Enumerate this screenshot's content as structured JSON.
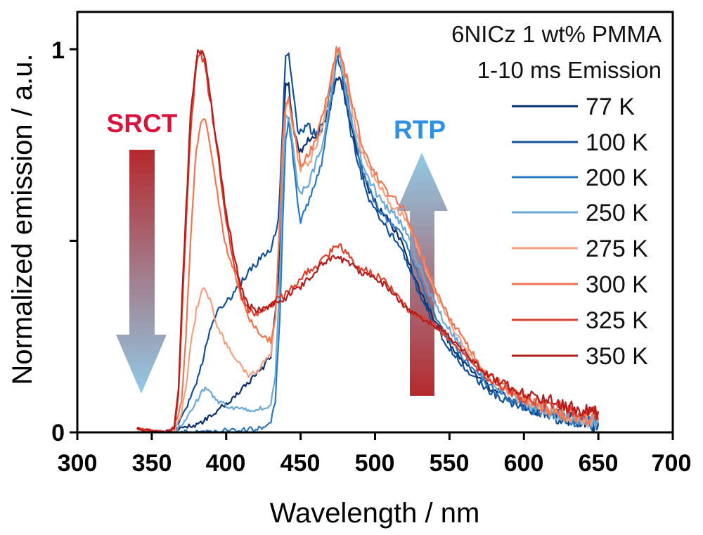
{
  "chart_data": {
    "type": "line",
    "xlabel": "Wavelength / nm",
    "ylabel": "Normalized emission / a.u.",
    "xlim": [
      300,
      700
    ],
    "ylim": [
      0,
      1.1
    ],
    "xticks": [
      "300",
      "350",
      "400",
      "450",
      "500",
      "550",
      "600",
      "650",
      "700"
    ],
    "yticks": [
      "0",
      "1"
    ],
    "annotations": [
      "6NICz 1 wt% PMMA",
      "1-10 ms Emission"
    ],
    "arrows": [
      {
        "label": "SRCT",
        "direction": "down",
        "color": "#d8143c"
      },
      {
        "label": "RTP",
        "direction": "up",
        "color": "#2e8fe3"
      }
    ],
    "legend_position": "top-right",
    "series": [
      {
        "name": "77 K",
        "color": "#0b2f6b",
        "x": [
          340,
          350,
          360,
          365,
          370,
          375,
          380,
          385,
          390,
          395,
          400,
          405,
          410,
          415,
          420,
          425,
          430,
          435,
          438,
          440,
          442,
          445,
          448,
          450,
          455,
          460,
          465,
          470,
          474,
          476,
          480,
          485,
          490,
          495,
          500,
          505,
          510,
          515,
          520,
          525,
          530,
          535,
          540,
          545,
          550,
          560,
          570,
          580,
          590,
          600,
          610,
          620,
          630,
          640,
          650
        ],
        "y": [
          0,
          0,
          0,
          0.005,
          0.01,
          0.015,
          0.02,
          0.03,
          0.045,
          0.06,
          0.075,
          0.09,
          0.11,
          0.13,
          0.15,
          0.17,
          0.2,
          0.4,
          0.75,
          0.92,
          0.9,
          0.8,
          0.75,
          0.73,
          0.76,
          0.78,
          0.8,
          0.85,
          0.92,
          0.93,
          0.87,
          0.78,
          0.7,
          0.64,
          0.6,
          0.57,
          0.55,
          0.52,
          0.47,
          0.42,
          0.37,
          0.33,
          0.29,
          0.26,
          0.23,
          0.18,
          0.14,
          0.11,
          0.09,
          0.07,
          0.055,
          0.045,
          0.035,
          0.03,
          0.02
        ]
      },
      {
        "name": "100 K",
        "color": "#12509a",
        "x": [
          340,
          350,
          360,
          365,
          370,
          375,
          380,
          385,
          390,
          395,
          400,
          405,
          410,
          415,
          420,
          425,
          430,
          435,
          438,
          440,
          442,
          445,
          448,
          450,
          455,
          460,
          465,
          470,
          474,
          476,
          480,
          485,
          490,
          495,
          500,
          505,
          510,
          515,
          520,
          525,
          530,
          535,
          540,
          545,
          550,
          560,
          570,
          580,
          590,
          600,
          610,
          620,
          630,
          640,
          650
        ],
        "y": [
          0,
          0,
          0,
          0.01,
          0.04,
          0.08,
          0.13,
          0.2,
          0.28,
          0.32,
          0.34,
          0.36,
          0.39,
          0.42,
          0.44,
          0.46,
          0.48,
          0.55,
          0.8,
          0.98,
          1.0,
          0.88,
          0.79,
          0.78,
          0.8,
          0.78,
          0.8,
          0.9,
          0.98,
          0.97,
          0.87,
          0.76,
          0.68,
          0.62,
          0.58,
          0.55,
          0.52,
          0.5,
          0.46,
          0.41,
          0.36,
          0.32,
          0.28,
          0.25,
          0.22,
          0.17,
          0.13,
          0.1,
          0.08,
          0.065,
          0.05,
          0.04,
          0.032,
          0.026,
          0.02
        ]
      },
      {
        "name": "200 K",
        "color": "#2a78bd",
        "x": [
          340,
          350,
          360,
          370,
          380,
          390,
          400,
          410,
          420,
          425,
          430,
          433,
          436,
          438,
          440,
          442,
          445,
          448,
          450,
          452,
          455,
          460,
          465,
          470,
          474,
          476,
          480,
          485,
          490,
          495,
          500,
          505,
          510,
          515,
          520,
          525,
          530,
          535,
          540,
          545,
          550,
          560,
          570,
          580,
          590,
          600,
          610,
          620,
          630,
          640,
          650
        ],
        "y": [
          0,
          0,
          0,
          0,
          0,
          0,
          0.005,
          0.005,
          0.01,
          0.015,
          0.03,
          0.08,
          0.3,
          0.55,
          0.76,
          0.82,
          0.72,
          0.6,
          0.55,
          0.58,
          0.6,
          0.65,
          0.72,
          0.85,
          0.97,
          0.99,
          0.9,
          0.8,
          0.71,
          0.65,
          0.6,
          0.57,
          0.55,
          0.53,
          0.5,
          0.45,
          0.4,
          0.35,
          0.31,
          0.27,
          0.24,
          0.19,
          0.15,
          0.11,
          0.09,
          0.07,
          0.055,
          0.045,
          0.035,
          0.03,
          0.022
        ]
      },
      {
        "name": "250 K",
        "color": "#6aa9d8",
        "x": [
          340,
          350,
          360,
          365,
          370,
          375,
          380,
          383,
          386,
          390,
          395,
          400,
          405,
          410,
          415,
          420,
          425,
          430,
          433,
          436,
          438,
          440,
          442,
          445,
          448,
          450,
          455,
          460,
          465,
          470,
          474,
          476,
          480,
          485,
          490,
          495,
          500,
          505,
          510,
          515,
          520,
          525,
          530,
          535,
          540,
          545,
          550,
          560,
          570,
          580,
          590,
          600,
          610,
          620,
          630,
          640,
          650
        ],
        "y": [
          0,
          0,
          0,
          0.005,
          0.02,
          0.05,
          0.08,
          0.1,
          0.12,
          0.1,
          0.08,
          0.07,
          0.065,
          0.06,
          0.06,
          0.06,
          0.065,
          0.07,
          0.15,
          0.4,
          0.66,
          0.82,
          0.82,
          0.75,
          0.65,
          0.63,
          0.64,
          0.7,
          0.76,
          0.88,
          0.98,
          0.99,
          0.9,
          0.8,
          0.72,
          0.67,
          0.63,
          0.6,
          0.58,
          0.56,
          0.53,
          0.48,
          0.43,
          0.38,
          0.34,
          0.3,
          0.27,
          0.21,
          0.16,
          0.12,
          0.1,
          0.08,
          0.06,
          0.05,
          0.04,
          0.032,
          0.025
        ]
      },
      {
        "name": "275 K",
        "color": "#f5a07e",
        "x": [
          340,
          350,
          360,
          365,
          370,
          373,
          376,
          380,
          383,
          386,
          390,
          395,
          400,
          405,
          410,
          415,
          420,
          425,
          430,
          433,
          436,
          438,
          440,
          442,
          445,
          448,
          450,
          455,
          460,
          465,
          470,
          474,
          476,
          480,
          485,
          490,
          495,
          500,
          505,
          510,
          515,
          520,
          525,
          530,
          535,
          540,
          545,
          550,
          560,
          570,
          580,
          590,
          600,
          610,
          620,
          630,
          640,
          650
        ],
        "y": [
          0,
          0,
          0,
          0.005,
          0.05,
          0.12,
          0.22,
          0.32,
          0.36,
          0.38,
          0.33,
          0.27,
          0.23,
          0.2,
          0.17,
          0.15,
          0.16,
          0.18,
          0.2,
          0.3,
          0.55,
          0.75,
          0.85,
          0.86,
          0.8,
          0.72,
          0.69,
          0.7,
          0.74,
          0.8,
          0.9,
          0.99,
          1.0,
          0.93,
          0.83,
          0.75,
          0.7,
          0.66,
          0.63,
          0.6,
          0.58,
          0.56,
          0.52,
          0.47,
          0.42,
          0.37,
          0.33,
          0.29,
          0.22,
          0.17,
          0.13,
          0.1,
          0.08,
          0.065,
          0.05,
          0.04,
          0.035,
          0.028
        ]
      },
      {
        "name": "300 K",
        "color": "#ef7650",
        "x": [
          340,
          350,
          360,
          365,
          370,
          373,
          376,
          380,
          383,
          386,
          390,
          395,
          400,
          405,
          410,
          415,
          420,
          425,
          430,
          433,
          436,
          438,
          440,
          442,
          445,
          448,
          450,
          455,
          460,
          465,
          470,
          474,
          476,
          480,
          485,
          490,
          495,
          500,
          505,
          510,
          515,
          520,
          525,
          530,
          535,
          540,
          545,
          550,
          560,
          570,
          580,
          590,
          600,
          610,
          620,
          630,
          640,
          650
        ],
        "y": [
          0.01,
          0.005,
          0,
          0.01,
          0.08,
          0.25,
          0.5,
          0.75,
          0.8,
          0.82,
          0.72,
          0.6,
          0.48,
          0.42,
          0.35,
          0.3,
          0.27,
          0.25,
          0.24,
          0.3,
          0.55,
          0.76,
          0.86,
          0.88,
          0.8,
          0.74,
          0.7,
          0.72,
          0.76,
          0.83,
          0.92,
          1.0,
          1.0,
          0.94,
          0.85,
          0.77,
          0.72,
          0.68,
          0.65,
          0.62,
          0.6,
          0.58,
          0.53,
          0.48,
          0.43,
          0.38,
          0.34,
          0.3,
          0.24,
          0.18,
          0.14,
          0.11,
          0.09,
          0.07,
          0.055,
          0.045,
          0.04,
          0.032
        ]
      },
      {
        "name": "325 K",
        "color": "#e2402e",
        "x": [
          340,
          350,
          360,
          365,
          368,
          372,
          376,
          380,
          383,
          386,
          390,
          395,
          400,
          405,
          410,
          415,
          420,
          425,
          430,
          435,
          440,
          445,
          450,
          455,
          460,
          465,
          470,
          474,
          478,
          482,
          486,
          490,
          495,
          500,
          505,
          510,
          515,
          520,
          525,
          530,
          535,
          540,
          545,
          550,
          560,
          570,
          580,
          590,
          600,
          610,
          620,
          630,
          640,
          650
        ],
        "y": [
          0.01,
          0.005,
          0,
          0.01,
          0.1,
          0.45,
          0.78,
          0.97,
          0.99,
          0.95,
          0.85,
          0.7,
          0.55,
          0.45,
          0.36,
          0.32,
          0.31,
          0.32,
          0.33,
          0.35,
          0.36,
          0.38,
          0.4,
          0.42,
          0.43,
          0.45,
          0.47,
          0.49,
          0.48,
          0.46,
          0.44,
          0.43,
          0.42,
          0.41,
          0.4,
          0.38,
          0.36,
          0.33,
          0.31,
          0.3,
          0.29,
          0.28,
          0.26,
          0.24,
          0.2,
          0.16,
          0.13,
          0.11,
          0.09,
          0.08,
          0.07,
          0.06,
          0.05,
          0.045
        ]
      },
      {
        "name": "350 K",
        "color": "#b41c1c",
        "x": [
          340,
          350,
          360,
          365,
          368,
          372,
          376,
          380,
          383,
          386,
          390,
          395,
          400,
          405,
          410,
          415,
          420,
          425,
          430,
          435,
          440,
          445,
          450,
          455,
          460,
          465,
          470,
          474,
          478,
          482,
          486,
          490,
          495,
          500,
          505,
          510,
          515,
          520,
          525,
          530,
          535,
          540,
          545,
          550,
          560,
          570,
          580,
          590,
          600,
          610,
          620,
          630,
          640,
          650
        ],
        "y": [
          0.01,
          0.005,
          0,
          0.01,
          0.12,
          0.5,
          0.82,
          0.98,
          1.0,
          0.96,
          0.86,
          0.72,
          0.57,
          0.47,
          0.38,
          0.33,
          0.32,
          0.32,
          0.33,
          0.34,
          0.35,
          0.37,
          0.38,
          0.4,
          0.42,
          0.44,
          0.45,
          0.46,
          0.45,
          0.44,
          0.43,
          0.42,
          0.41,
          0.4,
          0.39,
          0.37,
          0.35,
          0.33,
          0.31,
          0.3,
          0.29,
          0.28,
          0.27,
          0.25,
          0.21,
          0.17,
          0.14,
          0.12,
          0.1,
          0.09,
          0.08,
          0.07,
          0.06,
          0.055
        ]
      }
    ]
  }
}
